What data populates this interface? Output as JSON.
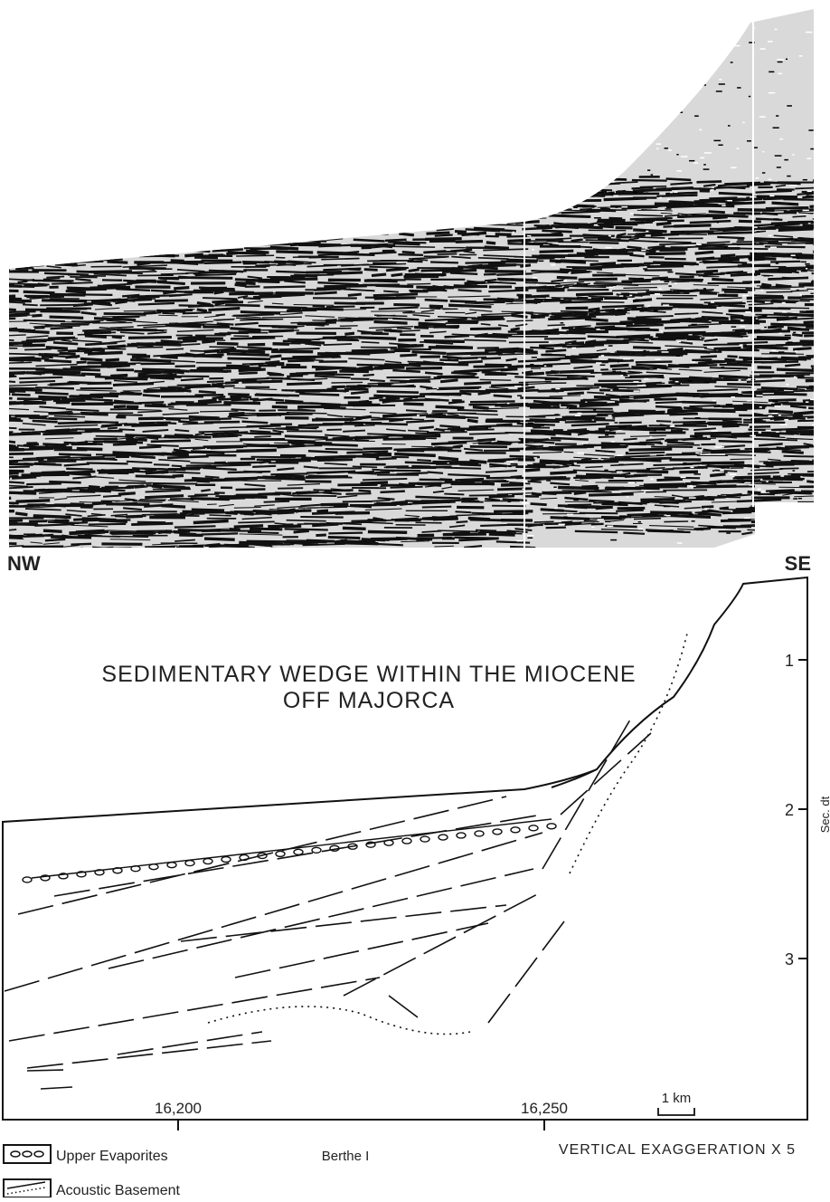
{
  "profile": {
    "left_label": "NW",
    "right_label": "SE"
  },
  "interpretation": {
    "title_lines": [
      "SEDIMENTARY WEDGE WITHIN THE MIOCENE",
      "OFF MAJORCA"
    ],
    "depth_axis": {
      "label": "Sec. dt",
      "ticks": [
        1,
        2,
        3
      ]
    },
    "shot_points": [
      {
        "value": 16200,
        "label": "16,200"
      },
      {
        "value": 16250,
        "label": "16,250"
      }
    ],
    "scale_bar": "1 km",
    "line_name": "Berthe I",
    "exaggeration": "VERTICAL EXAGGERATION X 5"
  },
  "legend": [
    "Upper Evaporites",
    "Acoustic Basement"
  ]
}
